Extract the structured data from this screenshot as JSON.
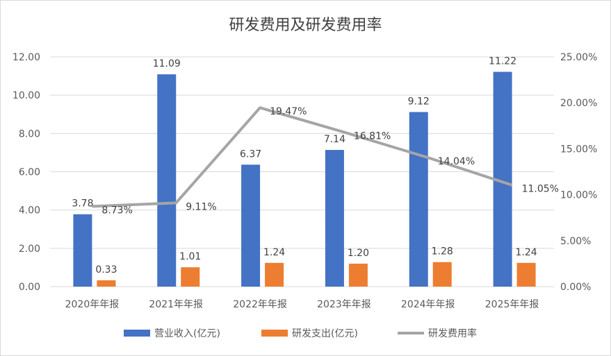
{
  "chart_data": {
    "type": "bar",
    "title": "研发费用及研发费用率",
    "categories": [
      "2020年年报",
      "2021年年报",
      "2022年年报",
      "2023年年报",
      "2024年年报",
      "2025年年报"
    ],
    "series": [
      {
        "name": "营业收入(亿元)",
        "type": "bar",
        "axis": "left",
        "color": "#4472C4",
        "values": [
          3.78,
          11.09,
          6.37,
          7.14,
          9.12,
          11.22
        ],
        "labels": [
          "3.78",
          "11.09",
          "6.37",
          "7.14",
          "9.12",
          "11.22"
        ]
      },
      {
        "name": "研发支出(亿元)",
        "type": "bar",
        "axis": "left",
        "color": "#ED7D31",
        "values": [
          0.33,
          1.01,
          1.24,
          1.2,
          1.28,
          1.24
        ],
        "labels": [
          "0.33",
          "1.01",
          "1.24",
          "1.20",
          "1.28",
          "1.24"
        ]
      },
      {
        "name": "研发费用率",
        "type": "line",
        "axis": "right",
        "color": "#A5A5A5",
        "values": [
          8.73,
          9.11,
          19.47,
          16.81,
          14.04,
          11.05
        ],
        "labels": [
          "8.73%",
          "9.11%",
          "19.47%",
          "16.81%",
          "14.04%",
          "11.05%"
        ]
      }
    ],
    "y_left": {
      "min": 0,
      "max": 12,
      "ticks": [
        "0.00",
        "2.00",
        "4.00",
        "6.00",
        "8.00",
        "10.00",
        "12.00"
      ]
    },
    "y_right": {
      "min": 0,
      "max": 25,
      "ticks": [
        "0.00%",
        "5.00%",
        "10.00%",
        "15.00%",
        "20.00%",
        "25.00%"
      ]
    },
    "grid": true,
    "legend": "bottom"
  }
}
